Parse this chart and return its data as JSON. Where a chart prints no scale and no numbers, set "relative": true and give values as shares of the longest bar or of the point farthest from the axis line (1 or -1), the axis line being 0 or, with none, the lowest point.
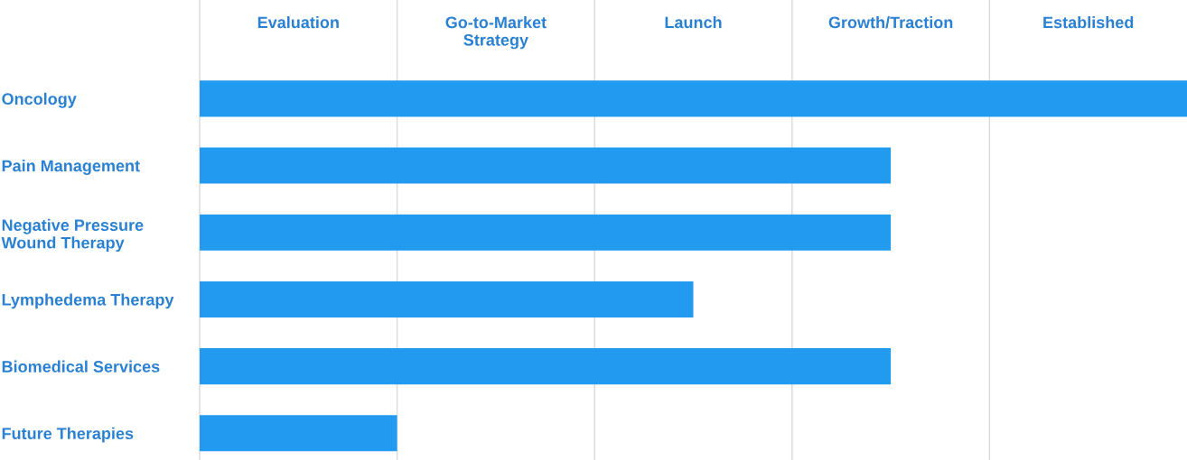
{
  "chart_data": {
    "type": "bar",
    "orientation": "horizontal",
    "relative": true,
    "categories": [
      "Oncology",
      "Pain Management",
      "Negative Pressure\nWound Therapy",
      "Lymphedema Therapy",
      "Biomedical Services",
      "Future Therapies"
    ],
    "values": [
      1,
      0.7,
      0.7,
      0.5,
      0.7,
      0.2
    ],
    "color": "#229af0",
    "annotations": [
      "Evaluation",
      "Go-to-Market\nStrategy",
      "Launch",
      "Growth/Traction",
      "Established"
    ],
    "ref_lines": [
      {
        "axis": "x",
        "value": 0,
        "color": "#d9d9d9"
      },
      {
        "axis": "x",
        "value": 0.2,
        "color": "#d9d9d9"
      },
      {
        "axis": "x",
        "value": 0.4,
        "color": "#d9d9d9"
      },
      {
        "axis": "x",
        "value": 0.6,
        "color": "#d9d9d9"
      },
      {
        "axis": "x",
        "value": 0.8,
        "color": "#d9d9d9"
      }
    ]
  }
}
